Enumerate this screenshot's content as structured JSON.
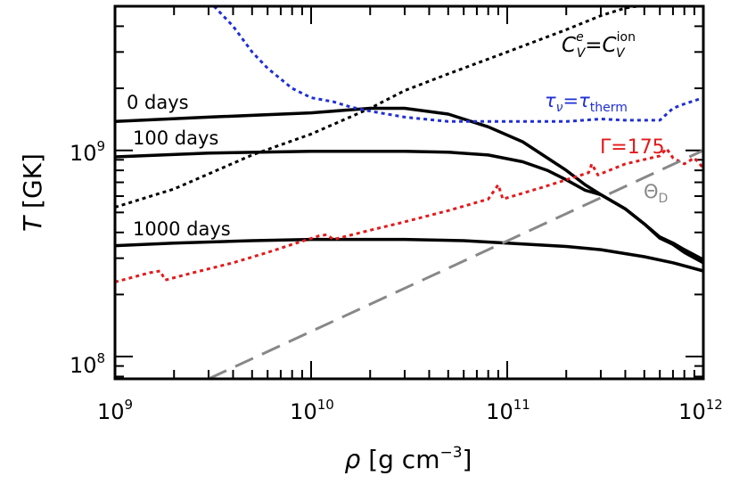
{
  "chart_data": {
    "type": "line",
    "title": "",
    "xscale": "log",
    "yscale": "log",
    "xlim": [
      1000000000.0,
      1000000000000.0
    ],
    "ylim": [
      78000000.0,
      5000000000.0
    ],
    "xlabel": {
      "symbol": "ρ",
      "open": " [g cm",
      "exp": "−3",
      "close": "]"
    },
    "ylabel": {
      "symbol": "T",
      "unit": " [GK]"
    },
    "x_ticks": [
      {
        "base": "10",
        "exp": "9"
      },
      {
        "base": "10",
        "exp": "10"
      },
      {
        "base": "10",
        "exp": "11"
      },
      {
        "base": "10",
        "exp": "12"
      }
    ],
    "y_ticks": [
      {
        "base": "10",
        "exp": "8"
      },
      {
        "base": "10",
        "exp": "9"
      }
    ],
    "series": [
      {
        "name": "0 days",
        "style": "solid",
        "color": "#000000",
        "points": [
          [
            1000000000.0,
            1380000000.0
          ],
          [
            3000000000.0,
            1450000000.0
          ],
          [
            10000000000.0,
            1520000000.0
          ],
          [
            20000000000.0,
            1600000000.0
          ],
          [
            30000000000.0,
            1600000000.0
          ],
          [
            50000000000.0,
            1500000000.0
          ],
          [
            80000000000.0,
            1300000000.0
          ],
          [
            120000000000.0,
            1100000000.0
          ],
          [
            160000000000.0,
            920000000.0
          ],
          [
            200000000000.0,
            800000000.0
          ],
          [
            250000000000.0,
            680000000.0
          ],
          [
            300000000000.0,
            610000000.0
          ],
          [
            400000000000.0,
            520000000.0
          ],
          [
            500000000000.0,
            440000000.0
          ],
          [
            600000000000.0,
            380000000.0
          ],
          [
            700000000000.0,
            355000000.0
          ],
          [
            800000000000.0,
            330000000.0
          ],
          [
            1000000000000.0,
            295000000.0
          ]
        ]
      },
      {
        "name": "100 days",
        "style": "solid",
        "color": "#000000",
        "points": [
          [
            1000000000.0,
            930000000.0
          ],
          [
            3000000000.0,
            970000000.0
          ],
          [
            10000000000.0,
            990000000.0
          ],
          [
            30000000000.0,
            990000000.0
          ],
          [
            50000000000.0,
            980000000.0
          ],
          [
            80000000000.0,
            950000000.0
          ],
          [
            120000000000.0,
            880000000.0
          ],
          [
            160000000000.0,
            800000000.0
          ],
          [
            200000000000.0,
            720000000.0
          ],
          [
            250000000000.0,
            640000000.0
          ],
          [
            300000000000.0,
            610000000.0
          ],
          [
            400000000000.0,
            520000000.0
          ],
          [
            500000000000.0,
            440000000.0
          ],
          [
            600000000000.0,
            375000000.0
          ],
          [
            700000000000.0,
            350000000.0
          ],
          [
            800000000000.0,
            320000000.0
          ],
          [
            1000000000000.0,
            285000000.0
          ]
        ]
      },
      {
        "name": "1000 days",
        "style": "solid",
        "color": "#000000",
        "points": [
          [
            1000000000.0,
            345000000.0
          ],
          [
            2000000000.0,
            355000000.0
          ],
          [
            5000000000.0,
            365000000.0
          ],
          [
            10000000000.0,
            370000000.0
          ],
          [
            30000000000.0,
            370000000.0
          ],
          [
            60000000000.0,
            365000000.0
          ],
          [
            100000000000.0,
            355000000.0
          ],
          [
            200000000000.0,
            342000000.0
          ],
          [
            300000000000.0,
            330000000.0
          ],
          [
            500000000000.0,
            305000000.0
          ],
          [
            700000000000.0,
            285000000.0
          ],
          [
            1000000000000.0,
            260000000.0
          ]
        ]
      },
      {
        "name": "C_V^e = C_V^ion",
        "style": "dotted",
        "color": "#000000",
        "points": [
          [
            1000000000.0,
            530000000.0
          ],
          [
            2000000000.0,
            650000000.0
          ],
          [
            5000000000.0,
            950000000.0
          ],
          [
            10000000000.0,
            1200000000.0
          ],
          [
            20000000000.0,
            1600000000.0
          ],
          [
            30000000000.0,
            1950000000.0
          ],
          [
            50000000000.0,
            2350000000.0
          ],
          [
            100000000000.0,
            3000000000.0
          ],
          [
            200000000000.0,
            3850000000.0
          ],
          [
            300000000000.0,
            4500000000.0
          ],
          [
            400000000000.0,
            4900000000.0
          ],
          [
            460000000000.0,
            5000000000.0
          ]
        ]
      },
      {
        "name": "tau_nu = tau_therm",
        "style": "dotted",
        "color": "#1f2fd6",
        "points": [
          [
            3200000000.0,
            5000000000.0
          ],
          [
            4000000000.0,
            4000000000.0
          ],
          [
            5000000000.0,
            3000000000.0
          ],
          [
            6000000000.0,
            2500000000.0
          ],
          [
            8000000000.0,
            2000000000.0
          ],
          [
            10000000000.0,
            1800000000.0
          ],
          [
            13000000000.0,
            1720000000.0
          ],
          [
            16000000000.0,
            1620000000.0
          ],
          [
            20000000000.0,
            1550000000.0
          ],
          [
            30000000000.0,
            1450000000.0
          ],
          [
            50000000000.0,
            1380000000.0
          ],
          [
            100000000000.0,
            1380000000.0
          ],
          [
            200000000000.0,
            1380000000.0
          ],
          [
            300000000000.0,
            1420000000.0
          ],
          [
            400000000000.0,
            1400000000.0
          ],
          [
            600000000000.0,
            1400000000.0
          ],
          [
            700000000000.0,
            1600000000.0
          ],
          [
            800000000000.0,
            1680000000.0
          ],
          [
            1000000000000.0,
            1800000000.0
          ]
        ]
      },
      {
        "name": "Gamma = 175",
        "style": "dotted",
        "color": "#e31a1c",
        "points": [
          [
            1000000000.0,
            230000000.0
          ],
          [
            1500000000.0,
            255000000.0
          ],
          [
            1700000000.0,
            260000000.0
          ],
          [
            1800000000.0,
            235000000.0
          ],
          [
            2500000000.0,
            255000000.0
          ],
          [
            4000000000.0,
            285000000.0
          ],
          [
            6000000000.0,
            320000000.0
          ],
          [
            8000000000.0,
            350000000.0
          ],
          [
            11000000000.0,
            385000000.0
          ],
          [
            12000000000.0,
            390000000.0
          ],
          [
            13000000000.0,
            370000000.0
          ],
          [
            20000000000.0,
            410000000.0
          ],
          [
            30000000000.0,
            450000000.0
          ],
          [
            50000000000.0,
            510000000.0
          ],
          [
            80000000000.0,
            580000000.0
          ],
          [
            90000000000.0,
            680000000.0
          ],
          [
            95000000000.0,
            580000000.0
          ],
          [
            150000000000.0,
            660000000.0
          ],
          [
            200000000000.0,
            720000000.0
          ],
          [
            260000000000.0,
            780000000.0
          ],
          [
            270000000000.0,
            860000000.0
          ],
          [
            290000000000.0,
            760000000.0
          ],
          [
            400000000000.0,
            860000000.0
          ],
          [
            600000000000.0,
            940000000.0
          ],
          [
            650000000000.0,
            1020000000.0
          ],
          [
            700000000000.0,
            920000000.0
          ],
          [
            800000000000.0,
            860000000.0
          ],
          [
            900000000000.0,
            920000000.0
          ],
          [
            1000000000000.0,
            820000000.0
          ]
        ]
      },
      {
        "name": "Theta_D",
        "style": "dashed",
        "color": "#888888",
        "points": [
          [
            3000000000.0,
            78000000.0
          ],
          [
            1000000000000.0,
            1000000000.0
          ]
        ]
      }
    ],
    "annotations": [
      {
        "id": "0days",
        "text": "0 days",
        "color": "#000000"
      },
      {
        "id": "100days",
        "text": "100 days",
        "color": "#000000"
      },
      {
        "id": "1000days",
        "text": "1000 days",
        "color": "#000000"
      },
      {
        "id": "cv",
        "left_base": "C",
        "left_sup": "e",
        "left_sub": "V",
        "eq": "=",
        "right_base": "C",
        "right_sup": "ion",
        "right_sub": "V",
        "color": "#000000"
      },
      {
        "id": "tau",
        "left_base": "τ",
        "left_sub": "ν",
        "eq": "=",
        "right_base": "τ",
        "right_sub": "therm",
        "color": "#1f2fd6"
      },
      {
        "id": "gamma",
        "text": "Γ=175",
        "color": "#e31a1c"
      },
      {
        "id": "theta",
        "base": "Θ",
        "sub": "D",
        "color": "#888888"
      }
    ]
  }
}
